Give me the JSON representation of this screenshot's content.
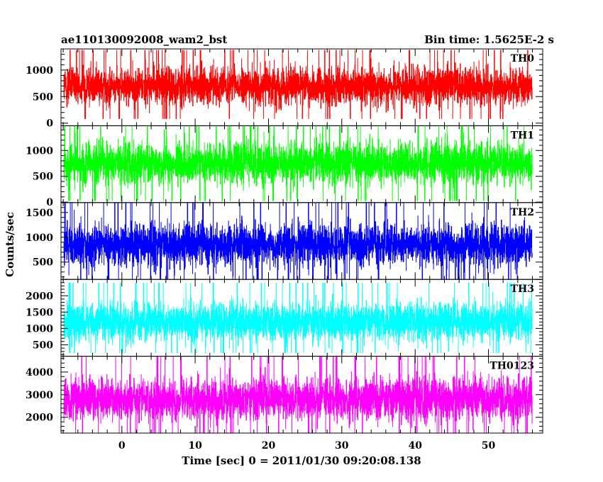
{
  "chart_data": {
    "type": "line",
    "title_left": "ae110130092008_wam2_bst",
    "title_right": "Bin time: 1.5625E-2 s",
    "xlabel": "Time [sec] 0 = 2011/01/30 09:20:08.138",
    "ylabel": "Counts/sec",
    "xlim": [
      -8.3,
      57.4
    ],
    "x_range_data": [
      -7.9,
      56.0
    ],
    "x_ticks": [
      0,
      10,
      20,
      30,
      40,
      50
    ],
    "x_tick_labels": [
      "0",
      "10",
      "20",
      "30",
      "40",
      "50"
    ],
    "bin_time": 0.015625,
    "panels": [
      {
        "name": "TH0",
        "color": "#ff0000",
        "ylim": [
          -50,
          1400
        ],
        "y_ticks": [
          0,
          500,
          1000
        ],
        "y_tick_labels": [
          "0",
          "500",
          "1000"
        ],
        "values_summary": {
          "mean": 700,
          "min": 80,
          "max": 1380
        }
      },
      {
        "name": "TH1",
        "color": "#00ff00",
        "ylim": [
          -10,
          1480
        ],
        "y_ticks": [
          0,
          500,
          1000
        ],
        "y_tick_labels": [
          "0",
          "500",
          "1000"
        ],
        "values_summary": {
          "mean": 750,
          "min": 20,
          "max": 1480
        }
      },
      {
        "name": "TH2",
        "color": "#0000ff",
        "ylim": [
          150,
          1700
        ],
        "y_ticks": [
          500,
          1000,
          1500
        ],
        "y_tick_labels": [
          "500",
          "1000",
          "1500"
        ],
        "values_summary": {
          "mean": 850,
          "min": 150,
          "max": 1700
        }
      },
      {
        "name": "TH3",
        "color": "#00ffff",
        "ylim": [
          150,
          2500
        ],
        "y_ticks": [
          500,
          1000,
          1500,
          2000
        ],
        "y_tick_labels": [
          "500",
          "1000",
          "1500",
          "2000"
        ],
        "values_summary": {
          "mean": 1200,
          "min": 250,
          "max": 2400
        }
      },
      {
        "name": "TH0123",
        "color": "#ff00ff",
        "ylim": [
          1300,
          4700
        ],
        "y_ticks": [
          2000,
          3000,
          4000
        ],
        "y_tick_labels": [
          "2000",
          "3000",
          "4000"
        ],
        "values_summary": {
          "mean": 2800,
          "min": 1300,
          "max": 4700
        }
      }
    ]
  }
}
